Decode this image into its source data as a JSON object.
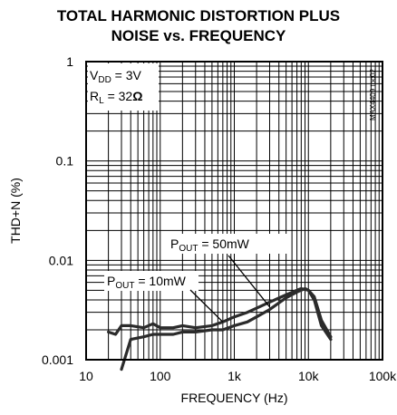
{
  "chart_data": {
    "type": "line",
    "title": [
      "TOTAL HARMONIC DISTORTION PLUS",
      "NOISE vs. FREQUENCY"
    ],
    "xlabel": "FREQUENCY (Hz)",
    "ylabel": "THD+N (%)",
    "xscale": "log",
    "yscale": "log",
    "xlim": [
      10,
      100000
    ],
    "ylim": [
      0.001,
      1
    ],
    "grid": true,
    "x_tick_values": [
      10,
      100,
      1000,
      10000,
      100000
    ],
    "x_tick_labels": [
      "10",
      "100",
      "1k",
      "10k",
      "100k"
    ],
    "y_tick_values": [
      1,
      0.1,
      0.01,
      0.001
    ],
    "y_tick_labels": [
      "1",
      "0.1",
      "0.01",
      "0.001"
    ],
    "conditions": {
      "vdd": {
        "prefix": "V",
        "sub": "DD",
        "suffix": " = 3V"
      },
      "rl": {
        "prefix": "R",
        "sub": "L",
        "suffix": " = 32",
        "unit": "Ω"
      }
    },
    "side_note": "MAX4409 toc02",
    "series": [
      {
        "name": {
          "prefix": "P",
          "sub": "OUT",
          "suffix": " = 10mW"
        },
        "x": [
          20,
          25,
          30,
          40,
          60,
          80,
          100,
          150,
          200,
          300,
          500,
          700,
          1000,
          1500,
          2000,
          3000,
          5000,
          7000,
          8000,
          10000,
          12000,
          15000,
          20000
        ],
        "y": [
          0.0019,
          0.0018,
          0.0022,
          0.0022,
          0.0021,
          0.0023,
          0.0021,
          0.0021,
          0.0022,
          0.0021,
          0.0022,
          0.0024,
          0.0027,
          0.003,
          0.0033,
          0.0038,
          0.0045,
          0.005,
          0.0052,
          0.005,
          0.004,
          0.0022,
          0.0016
        ]
      },
      {
        "name": {
          "prefix": "P",
          "sub": "OUT",
          "suffix": " = 50mW"
        },
        "x": [
          30,
          40,
          60,
          80,
          100,
          150,
          200,
          300,
          500,
          700,
          1000,
          1500,
          2000,
          3000,
          5000,
          7000,
          8000,
          9000,
          10000,
          12000,
          15000,
          20000
        ],
        "y": [
          0.0008,
          0.0016,
          0.0017,
          0.0018,
          0.0018,
          0.0018,
          0.0019,
          0.0019,
          0.002,
          0.002,
          0.0022,
          0.0024,
          0.0027,
          0.0032,
          0.0042,
          0.0048,
          0.005,
          0.0052,
          0.005,
          0.0043,
          0.0025,
          0.0017
        ]
      }
    ]
  }
}
